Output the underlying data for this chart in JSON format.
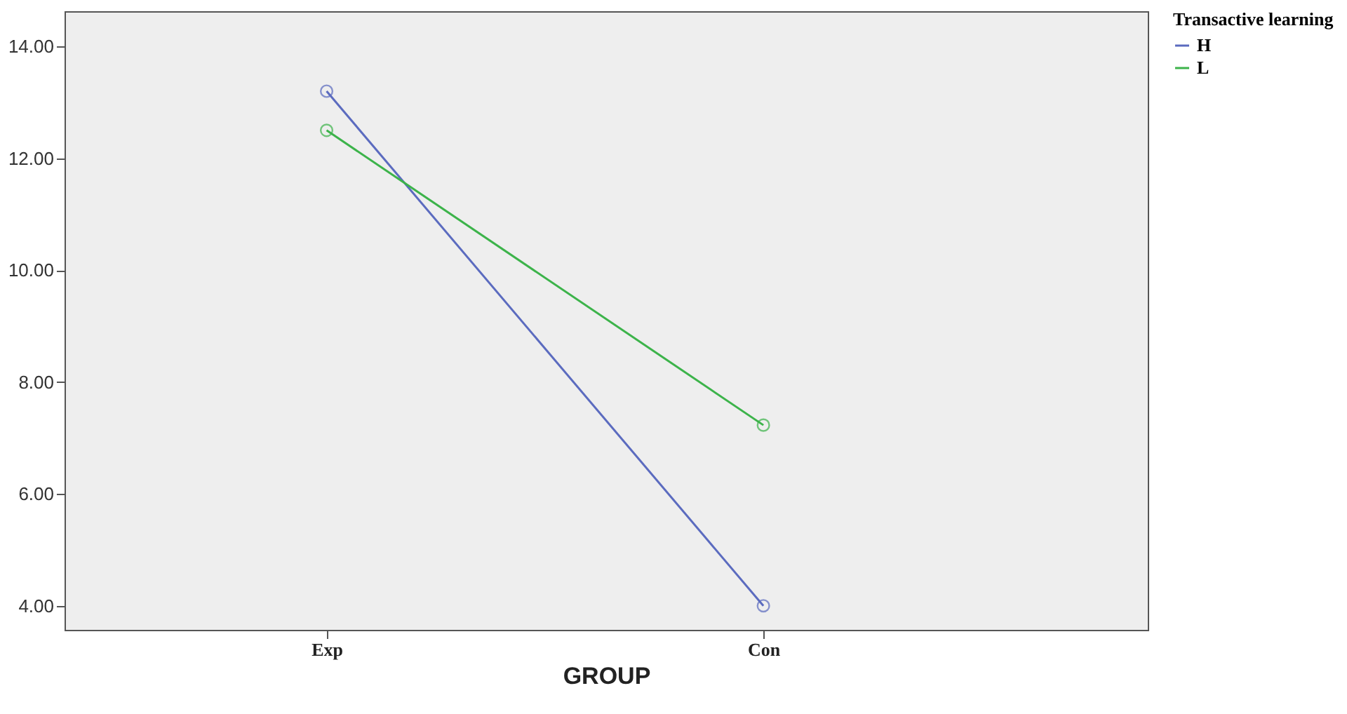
{
  "chart_data": {
    "type": "line",
    "xlabel": "GROUP",
    "legend_title": "Transactive learning",
    "categories": [
      "Exp",
      "Con"
    ],
    "series": [
      {
        "name": "H",
        "color": "#5b6bbf",
        "values": [
          13.2,
          4.0
        ]
      },
      {
        "name": "L",
        "color": "#3cb34a",
        "values": [
          12.5,
          7.23
        ]
      }
    ],
    "ylim": [
      3.57,
      14.63
    ],
    "yticks": [
      {
        "value": 4,
        "label": "4.00"
      },
      {
        "value": 6,
        "label": "6.00"
      },
      {
        "value": 8,
        "label": "8.00"
      },
      {
        "value": 10,
        "label": "10.00"
      },
      {
        "value": 12,
        "label": "12.00"
      },
      {
        "value": 14,
        "label": "14.00"
      }
    ],
    "marker": "circle",
    "grid": false,
    "legend": "top right",
    "line_style": "solid"
  }
}
